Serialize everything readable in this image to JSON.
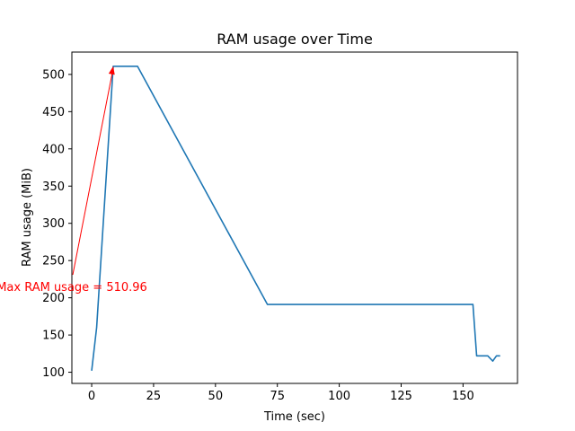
{
  "chart_data": {
    "type": "line",
    "title": "RAM usage over Time",
    "xlabel": "Time (sec)",
    "ylabel": "RAM usage (MiB)",
    "xlim": [
      -8,
      172
    ],
    "ylim": [
      85,
      530
    ],
    "xticks": [
      0,
      25,
      50,
      75,
      100,
      125,
      150
    ],
    "yticks": [
      100,
      150,
      200,
      250,
      300,
      350,
      400,
      450,
      500
    ],
    "grid": false,
    "series": [
      {
        "color": "#1f77b4",
        "x": [
          0,
          2,
          8.7,
          18.5,
          71,
          154,
          155.5,
          160,
          162,
          163.5,
          165
        ],
        "y": [
          102,
          160,
          510.96,
          510.96,
          191,
          191,
          122,
          122,
          115,
          122,
          122
        ]
      }
    ],
    "annotation": {
      "text": "Max RAM usage = 510.96",
      "color": "#ff0000",
      "target": [
        8.7,
        510.96
      ],
      "text_pos": [
        -8,
        215
      ]
    }
  }
}
